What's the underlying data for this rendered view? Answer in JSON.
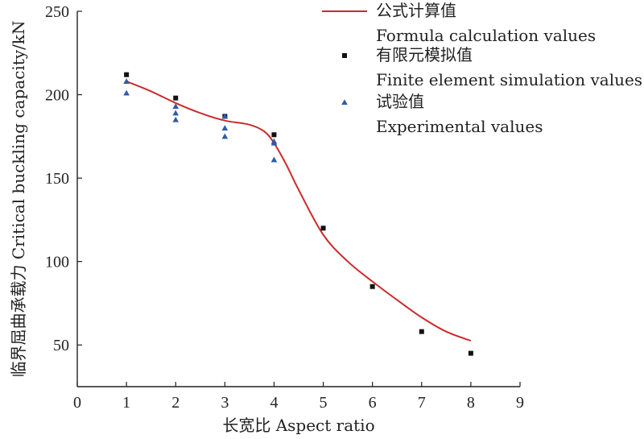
{
  "chart_data": {
    "type": "line",
    "xlabel": "长宽比 Aspect ratio",
    "ylabel": "临界屈曲承载力 Critical buckling capacity/kN",
    "xlim": [
      0,
      9
    ],
    "ylim": [
      25,
      250
    ],
    "xticks": [
      0,
      1,
      2,
      3,
      4,
      5,
      6,
      7,
      8,
      9
    ],
    "yticks": [
      50,
      100,
      150,
      200,
      250
    ],
    "legend_position": "top-right",
    "series": [
      {
        "name": "公式计算值",
        "name_en": "Formula calculation values",
        "kind": "curve",
        "color": "#cc2b2b",
        "x": [
          1,
          1.5,
          2,
          2.5,
          3,
          3.5,
          3.8,
          4,
          4.25,
          4.5,
          5,
          5.5,
          6,
          6.5,
          7,
          7.5,
          8
        ],
        "values": [
          208,
          202,
          195,
          189,
          184.5,
          182,
          178,
          171,
          158,
          143,
          116,
          100,
          88,
          77,
          66.5,
          58,
          52.5
        ]
      },
      {
        "name": "有限元模拟值",
        "name_en": "Finite element simulation values",
        "kind": "square",
        "color": "#111111",
        "x": [
          1,
          2,
          3,
          4,
          5,
          6,
          7,
          8
        ],
        "values": [
          212,
          198,
          187,
          176,
          120,
          85,
          58,
          45
        ]
      },
      {
        "name": "试验值",
        "name_en": "Experimental values",
        "kind": "triangle",
        "color": "#2e5aa8",
        "x": [
          1,
          1,
          2,
          2,
          2,
          3,
          3,
          3,
          4,
          4,
          4
        ],
        "values": [
          208,
          201,
          193,
          189,
          185,
          187,
          180,
          175,
          172,
          171,
          161
        ]
      }
    ]
  }
}
